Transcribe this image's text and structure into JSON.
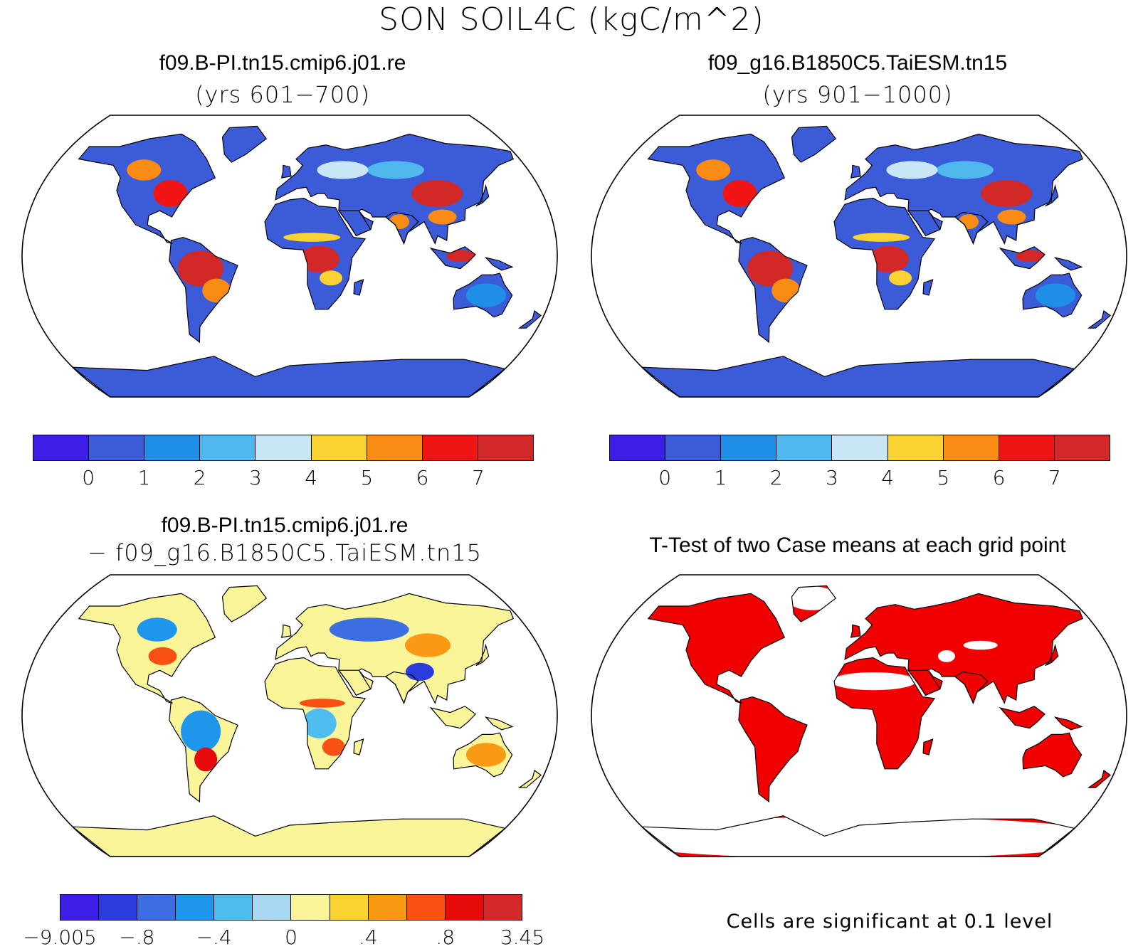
{
  "title": "SON SOIL4C (kgC/m^2)",
  "panels": [
    {
      "id": "case1",
      "title": "f09.B-PI.tn15.cmip6.j01.re",
      "subtitle": "(yrs 601−700)"
    },
    {
      "id": "case2",
      "title": "f09_g16.B1850C5.TaiESM.tn15",
      "subtitle": "(yrs 901−1000)"
    },
    {
      "id": "diff",
      "title": "f09.B-PI.tn15.cmip6.j01.re",
      "subtitle": "− f09_g16.B1850C5.TaiESM.tn15"
    },
    {
      "id": "ttest",
      "title": "T-Test of two Case means at each grid point",
      "subtitle": ""
    }
  ],
  "colorbars": {
    "absolute": {
      "colors": [
        "#3c1ee6",
        "#3b5bd8",
        "#1e8ee6",
        "#4fb8ef",
        "#c8e6f6",
        "#fad232",
        "#fa8c14",
        "#f01414",
        "#d22828"
      ],
      "labels": [
        "0",
        "1",
        "2",
        "3",
        "4",
        "5",
        "6",
        "7"
      ]
    },
    "difference": {
      "colors": [
        "#3c1ee6",
        "#2a3cdc",
        "#3b6ee0",
        "#1e96ec",
        "#4fbcf0",
        "#a8d8f0",
        "#fbf59a",
        "#fad232",
        "#fa9a14",
        "#fa5014",
        "#e60a0a",
        "#d22828"
      ],
      "labels": [
        "−9.005",
        "−.8",
        "−.4",
        "0",
        ".4",
        ".8",
        "3.45"
      ]
    }
  },
  "significance_note": "Cells are significant at 0.1 level",
  "map_colors": {
    "significant": "#f00000",
    "outline": "#000000"
  }
}
